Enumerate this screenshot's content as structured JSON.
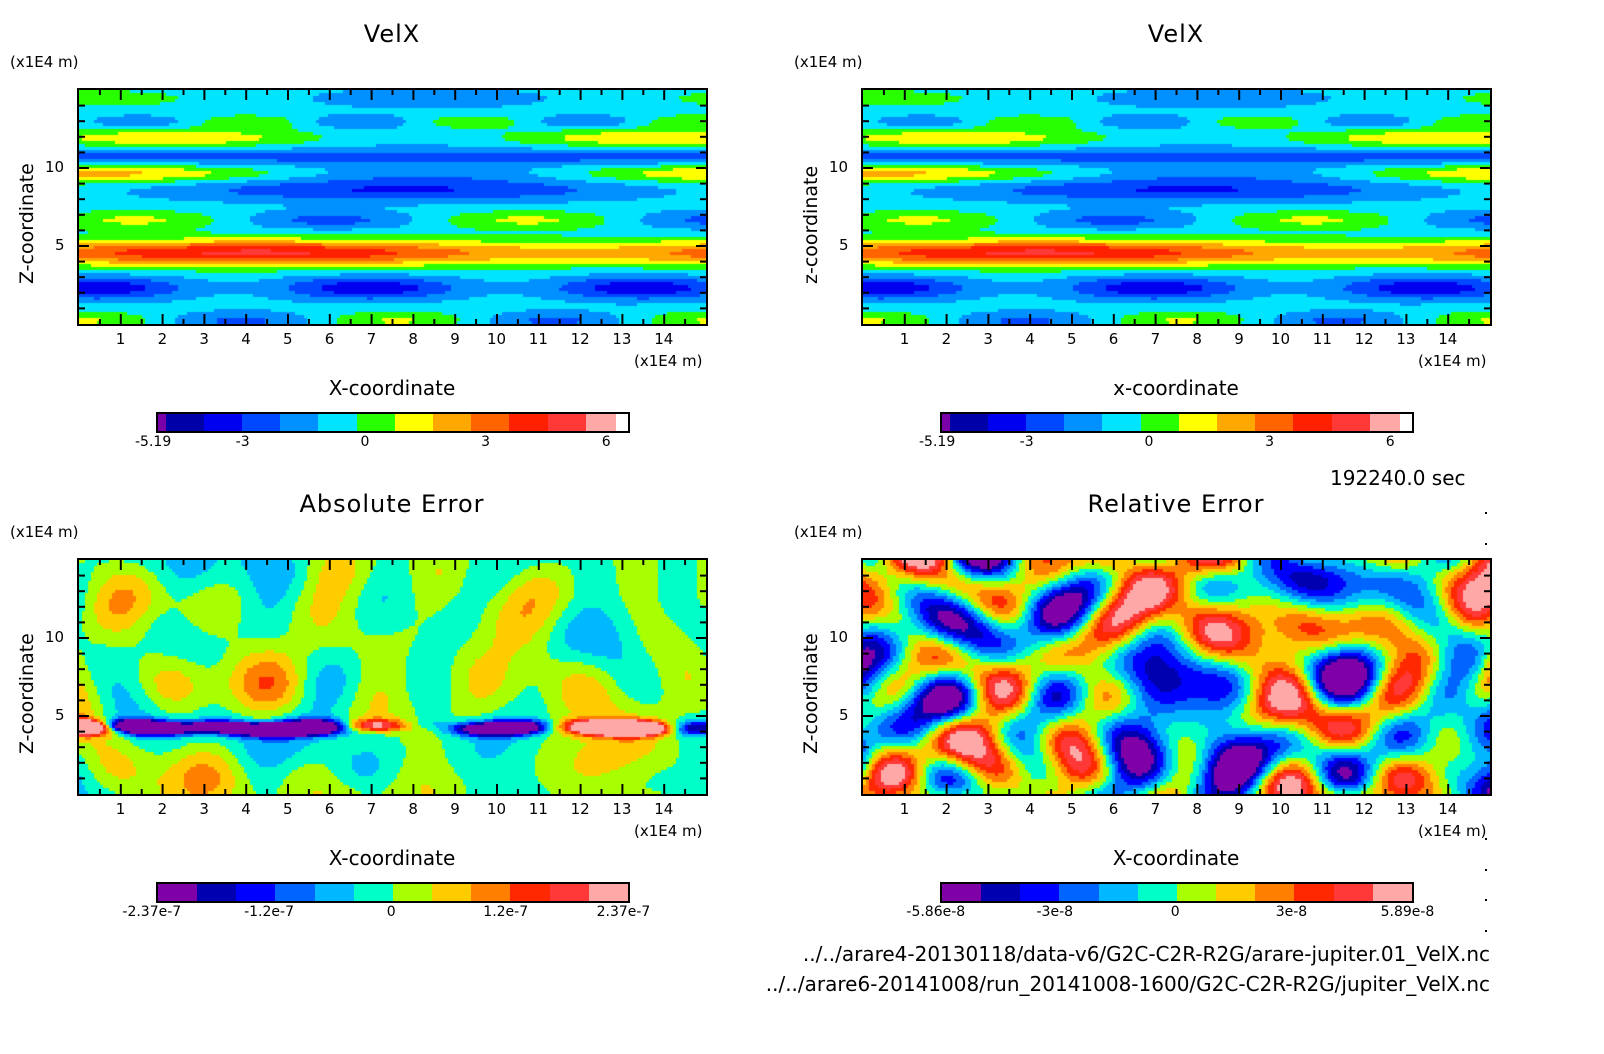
{
  "time_label": "192240.0 sec",
  "file_paths": [
    "../../arare4-20130118/data-v6/G2C-C2R-R2G/arare-jupiter.01_VelX.nc",
    "../../arare6-20141008/run_20141008-1600/G2C-C2R-R2G/jupiter_VelX.nc"
  ],
  "chart_data": [
    {
      "type": "heatmap",
      "title": "VelX",
      "xlabel": "X-coordinate",
      "ylabel": "Z-coordinate",
      "x_unit": "(x1E4 m)",
      "y_unit": "(x1E4 m)",
      "xlim": [
        0,
        15
      ],
      "ylim": [
        0,
        15
      ],
      "x_ticks": [
        "1",
        "2",
        "3",
        "4",
        "5",
        "6",
        "7",
        "8",
        "9",
        "10",
        "11",
        "12",
        "13",
        "14"
      ],
      "y_ticks": [
        "5",
        "10"
      ],
      "colorbar": {
        "min": -5.19,
        "max": 6.5,
        "tick_labels": [
          "-5.19",
          "-3",
          "0",
          "3",
          "6"
        ],
        "colors": [
          "#7a00a8",
          "#0000a8",
          "#0000f0",
          "#0048ff",
          "#0090ff",
          "#00e4ff",
          "#28ff00",
          "#ffff00",
          "#ffa800",
          "#ff6400",
          "#ff2000",
          "#ff3838",
          "#ffa8a8"
        ]
      },
      "field": "smooth-zonal-bands"
    },
    {
      "type": "heatmap",
      "title": "VelX",
      "xlabel": "x-coordinate",
      "ylabel": "z-coordinate",
      "x_unit": "(x1E4 m)",
      "y_unit": "(x1E4 m)",
      "xlim": [
        0,
        15
      ],
      "ylim": [
        0,
        15
      ],
      "x_ticks": [
        "1",
        "2",
        "3",
        "4",
        "5",
        "6",
        "7",
        "8",
        "9",
        "10",
        "11",
        "12",
        "13",
        "14"
      ],
      "y_ticks": [
        "5",
        "10"
      ],
      "colorbar": {
        "min": -5.19,
        "max": 6.5,
        "tick_labels": [
          "-5.19",
          "-3",
          "0",
          "3",
          "6"
        ],
        "colors": [
          "#7a00a8",
          "#0000a8",
          "#0000f0",
          "#0048ff",
          "#0090ff",
          "#00e4ff",
          "#28ff00",
          "#ffff00",
          "#ffa800",
          "#ff6400",
          "#ff2000",
          "#ff3838",
          "#ffa8a8"
        ]
      },
      "field": "smooth-zonal-bands"
    },
    {
      "type": "heatmap",
      "title": "Absolute Error",
      "xlabel": "X-coordinate",
      "ylabel": "Z-coordinate",
      "x_unit": "(x1E4 m)",
      "y_unit": "(x1E4 m)",
      "xlim": [
        0,
        15
      ],
      "ylim": [
        0,
        15
      ],
      "x_ticks": [
        "1",
        "2",
        "3",
        "4",
        "5",
        "6",
        "7",
        "8",
        "9",
        "10",
        "11",
        "12",
        "13",
        "14"
      ],
      "y_ticks": [
        "5",
        "10"
      ],
      "colorbar": {
        "min": -2.37e-07,
        "max": 2.37e-07,
        "tick_labels": [
          "-2.37e-7",
          "-1.2e-7",
          "0",
          "1.2e-7",
          "2.37e-7"
        ],
        "colors": [
          "#8000a8",
          "#0000b0",
          "#0000ff",
          "#0064ff",
          "#00b8ff",
          "#00ffc8",
          "#a8ff00",
          "#ffcc00",
          "#ff8000",
          "#ff2800",
          "#ff3838",
          "#ffa8a8"
        ]
      },
      "field": "noise-with-band-at-z5"
    },
    {
      "type": "heatmap",
      "title": "Relative Error",
      "xlabel": "X-coordinate",
      "ylabel": "Z-coordinate",
      "x_unit": "(x1E4 m)",
      "y_unit": "(x1E4 m)",
      "xlim": [
        0,
        15
      ],
      "ylim": [
        0,
        15
      ],
      "x_ticks": [
        "1",
        "2",
        "3",
        "4",
        "5",
        "6",
        "7",
        "8",
        "9",
        "10",
        "11",
        "12",
        "13",
        "14"
      ],
      "y_ticks": [
        "5",
        "10"
      ],
      "colorbar": {
        "min": -5.86e-08,
        "max": 5.89e-08,
        "tick_labels": [
          "-5.86e-8",
          "-3e-8",
          "0",
          "3e-8",
          "5.89e-8"
        ],
        "colors": [
          "#8000a8",
          "#0000b0",
          "#0000ff",
          "#0064ff",
          "#00b8ff",
          "#00ffc8",
          "#a8ff00",
          "#ffcc00",
          "#ff8000",
          "#ff2800",
          "#ff3838",
          "#ffa8a8"
        ]
      },
      "field": "uniform-noise"
    }
  ]
}
